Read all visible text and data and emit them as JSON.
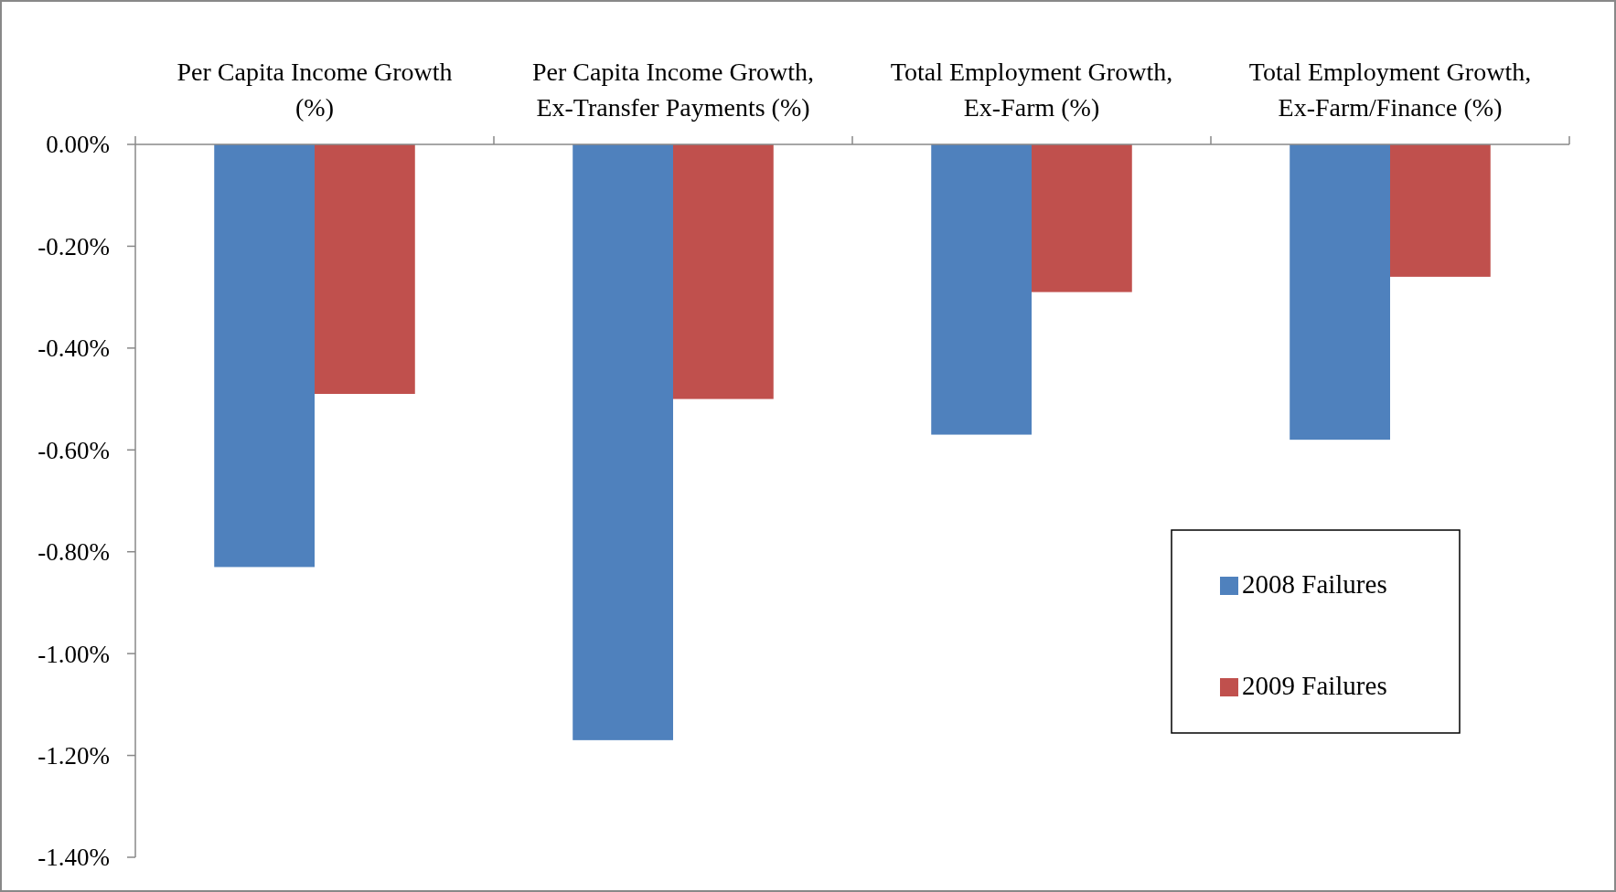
{
  "chart_data": {
    "type": "bar",
    "categories": [
      "Per Capita Income Growth\n(%)",
      "Per Capita Income Growth,\nEx-Transfer Payments (%)",
      "Total Employment Growth,\nEx-Farm (%)",
      "Total Employment Growth,\nEx-Farm/Finance (%)"
    ],
    "series": [
      {
        "name": "2008 Failures",
        "color": "#4f81bd",
        "values": [
          -0.83,
          -1.17,
          -0.57,
          -0.58
        ]
      },
      {
        "name": "2009 Failures",
        "color": "#c0504d",
        "values": [
          -0.49,
          -0.5,
          -0.29,
          -0.26
        ]
      }
    ],
    "ylim": [
      -1.4,
      0
    ],
    "yticks": [
      {
        "value": 0,
        "label": "0.00%"
      },
      {
        "value": -0.2,
        "label": "-0.20%"
      },
      {
        "value": -0.4,
        "label": "-0.40%"
      },
      {
        "value": -0.6,
        "label": "-0.60%"
      },
      {
        "value": -0.8,
        "label": "-0.80%"
      },
      {
        "value": -1.0,
        "label": "-1.00%"
      },
      {
        "value": -1.2,
        "label": "-1.20%"
      },
      {
        "value": -1.4,
        "label": "-1.40%"
      }
    ],
    "grid": false,
    "legend": "bottom right"
  }
}
